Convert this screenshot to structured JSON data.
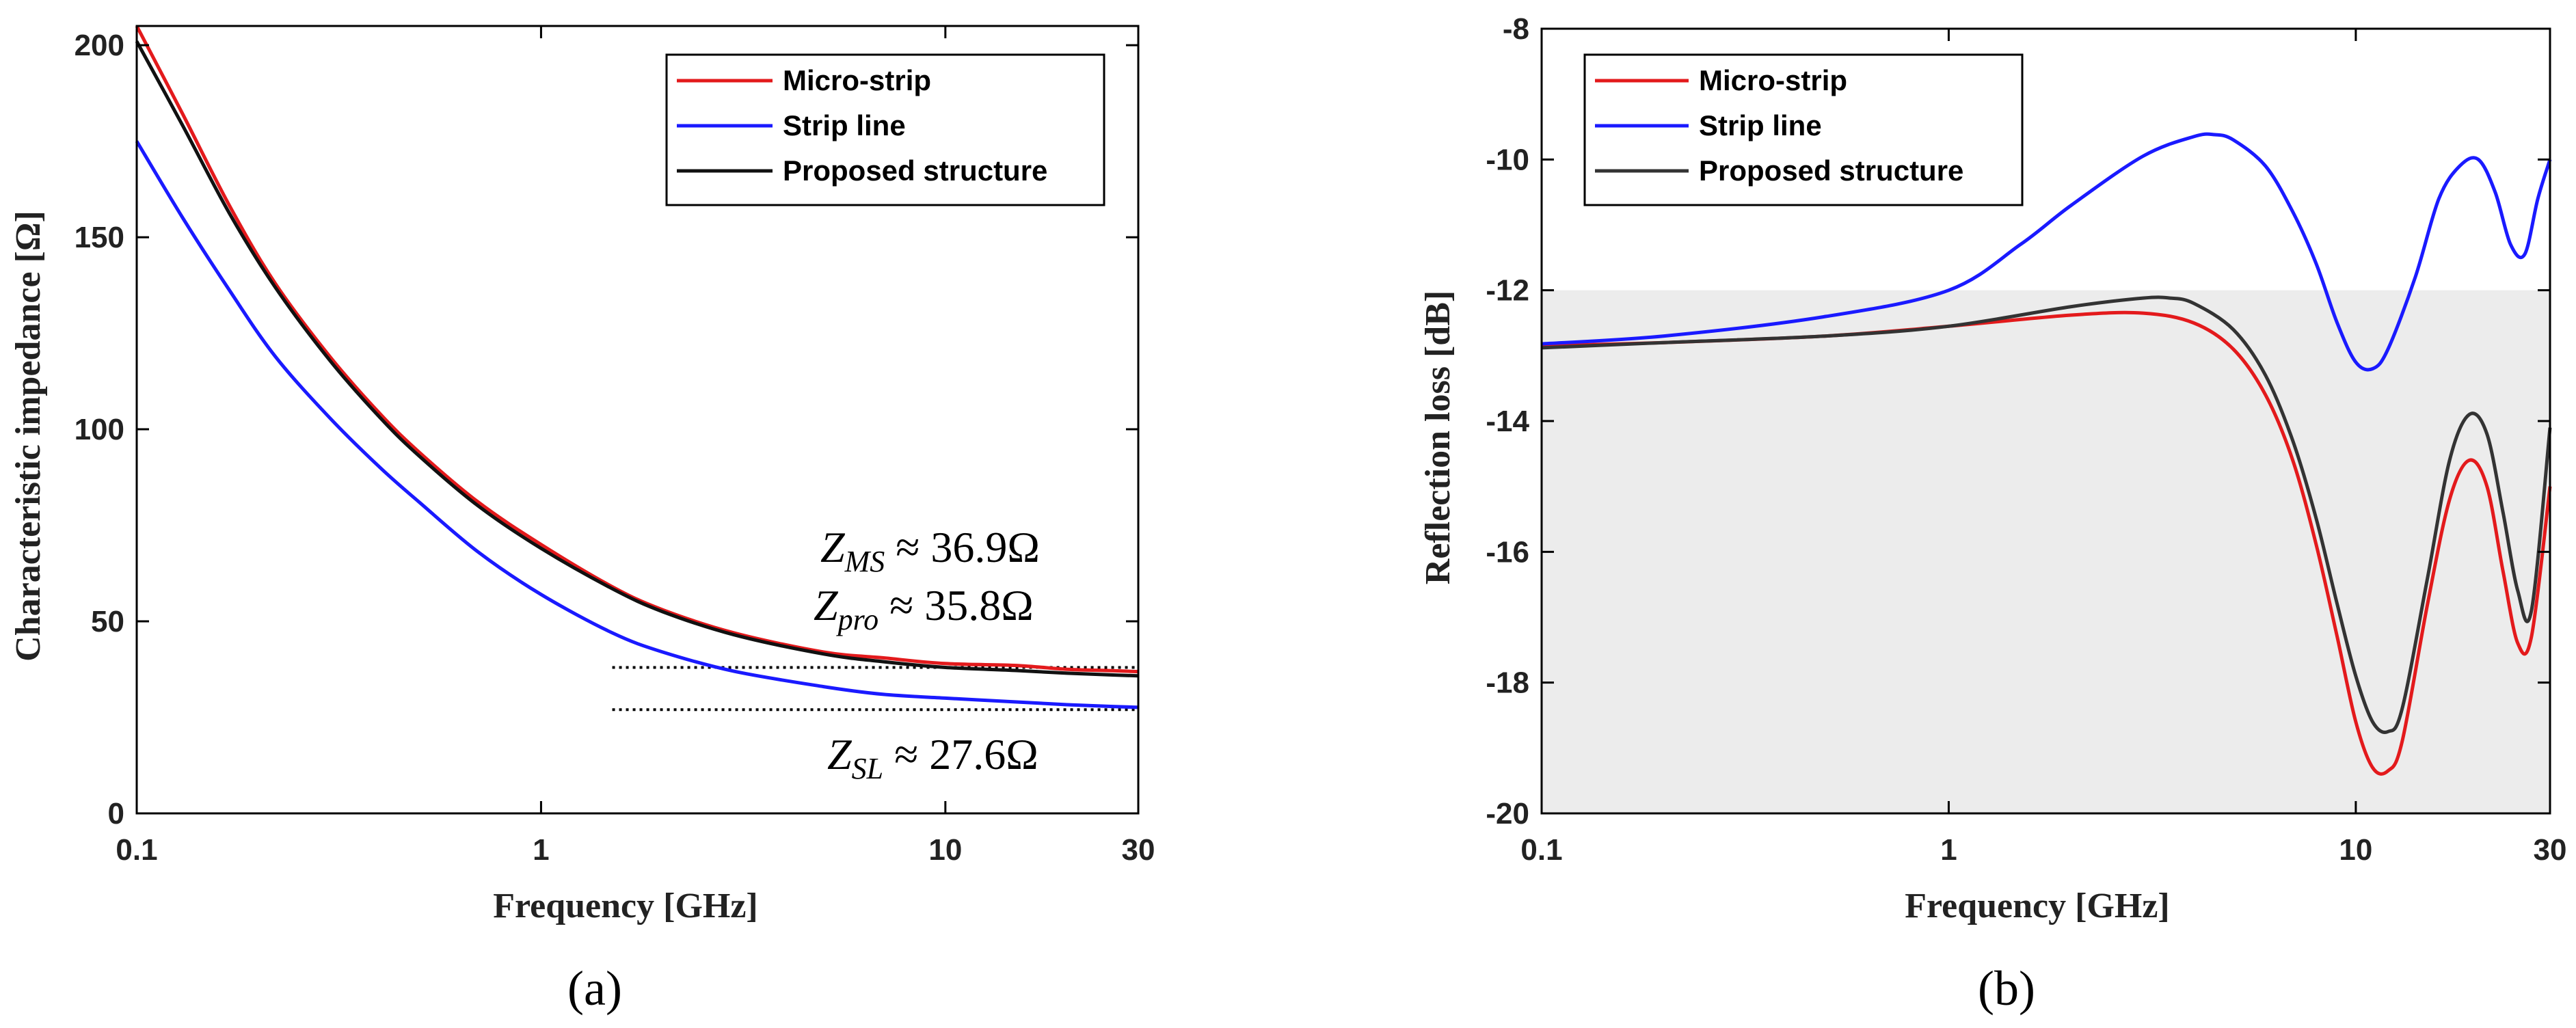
{
  "chart_data": [
    {
      "id": "a",
      "type": "line",
      "caption": "(a)",
      "xlabel": "Frequency [GHz]",
      "ylabel": "Characteristic impedance [Ω]",
      "xscale": "log",
      "xlim": [
        0.1,
        30
      ],
      "ylim": [
        0,
        205
      ],
      "xticks": [
        0.1,
        1,
        10,
        30
      ],
      "xtick_labels": [
        "0.1",
        "1",
        "10",
        "30"
      ],
      "yticks": [
        0,
        50,
        100,
        150,
        200
      ],
      "ytick_labels": [
        "0",
        "50",
        "100",
        "150",
        "200"
      ],
      "legend_position": "top-right",
      "series": [
        {
          "name": "Micro-strip",
          "color": "#e31a1c",
          "x": [
            0.1,
            0.13,
            0.17,
            0.22,
            0.3,
            0.4,
            0.5,
            0.7,
            1,
            1.5,
            2,
            3,
            5,
            7,
            10,
            15,
            20,
            25,
            30
          ],
          "y": [
            205,
            182,
            158,
            138,
            119,
            104,
            94,
            81,
            70,
            59,
            53,
            47,
            42,
            40.5,
            39,
            38.5,
            37.5,
            37.2,
            36.9
          ]
        },
        {
          "name": "Strip line",
          "color": "#1a1aff",
          "x": [
            0.1,
            0.13,
            0.17,
            0.22,
            0.3,
            0.4,
            0.5,
            0.7,
            1,
            1.5,
            2,
            3,
            5,
            7,
            10,
            15,
            20,
            25,
            30
          ],
          "y": [
            175,
            155,
            136,
            119,
            103,
            90,
            81,
            68,
            57,
            47,
            42,
            37,
            33,
            31,
            30,
            29,
            28.3,
            27.9,
            27.6
          ]
        },
        {
          "name": "Proposed structure",
          "color": "#111111",
          "x": [
            0.1,
            0.13,
            0.17,
            0.22,
            0.3,
            0.4,
            0.5,
            0.7,
            1,
            1.5,
            2,
            3,
            5,
            7,
            10,
            15,
            20,
            25,
            30
          ],
          "y": [
            201,
            179,
            156,
            137,
            118,
            103,
            93,
            80,
            69,
            58.5,
            52.5,
            46.5,
            41.5,
            39.5,
            38,
            37.2,
            36.5,
            36.1,
            35.8
          ]
        }
      ],
      "reference_lines": [
        {
          "y": 38,
          "x_from": 1.5,
          "x_to": 30,
          "style": "dotted"
        },
        {
          "y": 27,
          "x_from": 1.5,
          "x_to": 30,
          "style": "dotted"
        }
      ],
      "annotations": [
        {
          "base": "Z",
          "sub": "MS",
          "rest": " ≈ 36.9Ω"
        },
        {
          "base": "Z",
          "sub": "pro",
          "rest": " ≈ 35.8Ω"
        },
        {
          "base": "Z",
          "sub": "SL",
          "rest": " ≈ 27.6Ω"
        }
      ]
    },
    {
      "id": "b",
      "type": "line",
      "caption": "(b)",
      "xlabel": "Frequency [GHz]",
      "ylabel": "Reflection loss [dB]",
      "xscale": "log",
      "xlim": [
        0.1,
        30
      ],
      "ylim": [
        -20,
        -8
      ],
      "xticks": [
        0.1,
        1,
        10,
        30
      ],
      "xtick_labels": [
        "0.1",
        "1",
        "10",
        "30"
      ],
      "yticks": [
        -20,
        -18,
        -16,
        -14,
        -12,
        -10,
        -8
      ],
      "ytick_labels": [
        "-20",
        "-18",
        "-16",
        "-14",
        "-12",
        "-10",
        "-8"
      ],
      "shaded_region": {
        "y_from": -20,
        "y_to": -12,
        "color": "#ececec"
      },
      "legend_position": "top-left",
      "series": [
        {
          "name": "Micro-strip",
          "color": "#e31a1c",
          "x": [
            0.1,
            0.2,
            0.5,
            1,
            2,
            3,
            4,
            5,
            6,
            7,
            8,
            9,
            10,
            11,
            12,
            13,
            15,
            17,
            19,
            21,
            23,
            25,
            27,
            30
          ],
          "y": [
            -12.85,
            -12.8,
            -12.7,
            -12.55,
            -12.38,
            -12.35,
            -12.5,
            -12.9,
            -13.6,
            -14.6,
            -15.9,
            -17.3,
            -18.6,
            -19.3,
            -19.35,
            -18.9,
            -16.8,
            -15.2,
            -14.6,
            -15.0,
            -16.3,
            -17.4,
            -17.3,
            -15.0
          ]
        },
        {
          "name": "Strip line",
          "color": "#1a1aff",
          "x": [
            0.1,
            0.2,
            0.5,
            1,
            1.5,
            2,
            3,
            4,
            4.5,
            5,
            6,
            7,
            8,
            9,
            10,
            11,
            12,
            14,
            16,
            18,
            20,
            22,
            24,
            26,
            28,
            30
          ],
          "y": [
            -12.82,
            -12.7,
            -12.4,
            -12.0,
            -11.3,
            -10.7,
            -9.95,
            -9.65,
            -9.62,
            -9.7,
            -10.1,
            -10.8,
            -11.6,
            -12.5,
            -13.1,
            -13.2,
            -12.9,
            -11.8,
            -10.6,
            -10.1,
            -10.0,
            -10.5,
            -11.3,
            -11.45,
            -10.6,
            -10.0
          ]
        },
        {
          "name": "Proposed structure",
          "color": "#333333",
          "x": [
            0.1,
            0.2,
            0.5,
            1,
            2,
            3,
            3.5,
            4,
            5,
            6,
            7,
            8,
            9,
            10,
            11,
            12,
            13,
            15,
            17,
            19,
            21,
            23,
            25,
            27,
            30
          ],
          "y": [
            -12.88,
            -12.8,
            -12.7,
            -12.55,
            -12.25,
            -12.12,
            -12.12,
            -12.2,
            -12.6,
            -13.3,
            -14.3,
            -15.5,
            -16.8,
            -17.9,
            -18.6,
            -18.75,
            -18.4,
            -16.4,
            -14.6,
            -13.9,
            -14.2,
            -15.4,
            -16.6,
            -16.9,
            -14.1
          ]
        }
      ]
    }
  ]
}
